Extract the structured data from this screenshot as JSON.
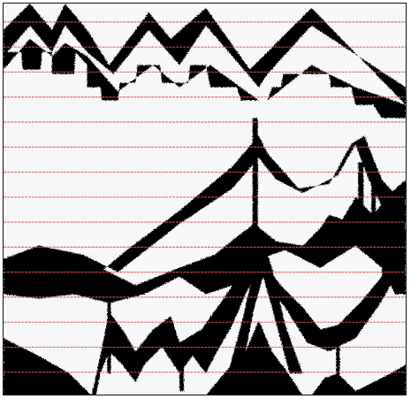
{
  "figure": {
    "description_note": "",
    "colors": {
      "background": "#f7f7f9",
      "ink": "#000000",
      "guide_lines": "#e05555",
      "frame": "#111111"
    },
    "guide_line_count": 15,
    "has_frame": true
  }
}
